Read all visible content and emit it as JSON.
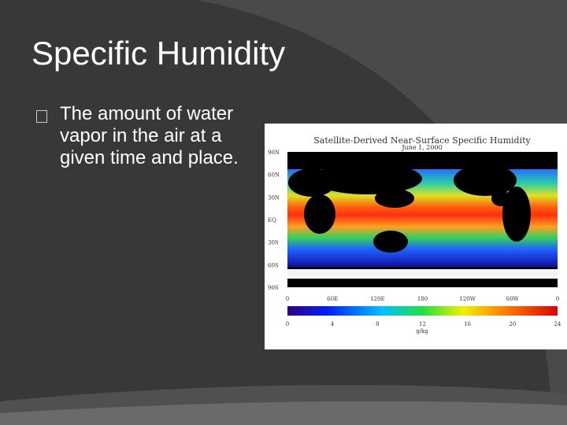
{
  "slide": {
    "title": "Specific Humidity",
    "bullets": [
      "The amount of water vapor in the air at a given time and place."
    ]
  },
  "figure": {
    "title": "Satellite-Derived Near-Surface Specific Humidity",
    "date": "June 1, 2000",
    "lat_labels": [
      "90N",
      "60N",
      "30N",
      "EQ",
      "30S",
      "60S",
      "90S"
    ],
    "lon_labels": [
      "0",
      "60E",
      "120E",
      "180",
      "120W",
      "60W",
      "0"
    ],
    "colorbar_ticks": [
      0,
      4,
      8,
      12,
      16,
      20,
      24
    ],
    "colorbar_unit": "g/kg"
  }
}
